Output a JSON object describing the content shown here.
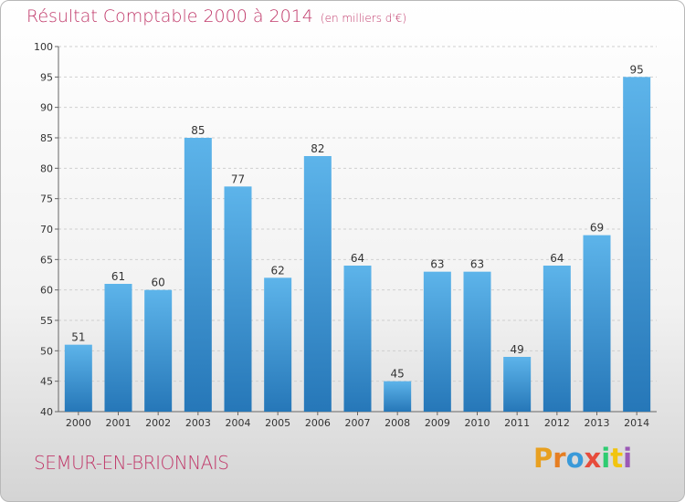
{
  "title": "Résultat Comptable 2000 à 2014",
  "title_unit": "(en milliers d'€)",
  "location": "SEMUR-EN-BRIONNAIS",
  "brand": "Proxiti",
  "colors": {
    "title": "#c0396a",
    "bar_light": "#5db4ea",
    "bar_dark": "#2677b8",
    "brand_letters": [
      "#e8a020",
      "#e67e22",
      "#3a9ad9",
      "#e74c3c",
      "#2ecc71",
      "#f1c40f",
      "#9b59b6"
    ]
  },
  "chart_data": {
    "type": "bar",
    "categories": [
      "2000",
      "2001",
      "2002",
      "2003",
      "2004",
      "2005",
      "2006",
      "2007",
      "2008",
      "2009",
      "2010",
      "2011",
      "2012",
      "2013",
      "2014"
    ],
    "values": [
      51,
      61,
      60,
      85,
      77,
      62,
      82,
      64,
      45,
      63,
      63,
      49,
      64,
      69,
      95
    ],
    "ylim": [
      40,
      100
    ],
    "yticks": [
      40,
      45,
      50,
      55,
      60,
      65,
      70,
      75,
      80,
      85,
      90,
      95,
      100
    ],
    "grid": true,
    "data_labels": true
  }
}
